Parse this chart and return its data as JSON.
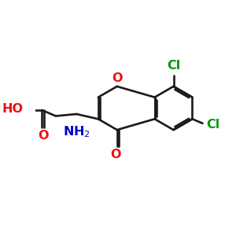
{
  "bg_color": "#ffffff",
  "bond_color": "#1a1a1a",
  "red_color": "#ee1111",
  "blue_color": "#0000cc",
  "green_color": "#009900",
  "bond_lw": 1.9,
  "figsize": [
    3.0,
    3.0
  ],
  "dpi": 100,
  "xlim": [
    0,
    10
  ],
  "ylim": [
    0,
    10
  ]
}
